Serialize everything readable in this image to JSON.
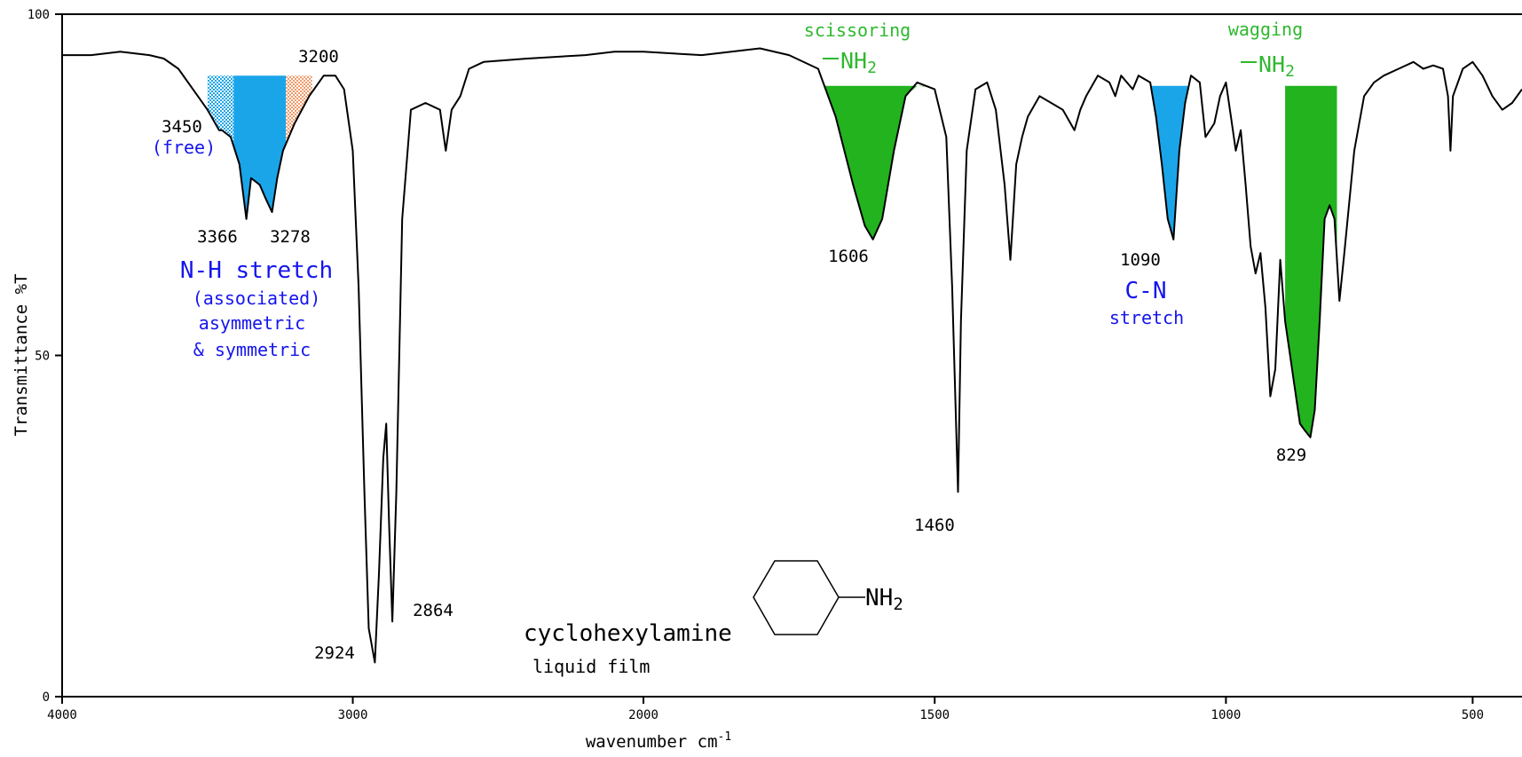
{
  "chart_data": {
    "type": "line",
    "title": "",
    "xlabel": "wavenumber cm",
    "xlabel_exp": "-1",
    "ylabel": "Transmittance %T",
    "xlim": [
      4000,
      400
    ],
    "ylim": [
      0,
      100
    ],
    "x_axis_breakpoints": [
      [
        4000,
        0
      ],
      [
        2000,
        0.3982
      ],
      [
        1000,
        0.7972
      ],
      [
        400,
        1.0
      ]
    ],
    "x_ticks": [
      {
        "value": 4000,
        "label": "4000"
      },
      {
        "value": 3000,
        "label": "3000"
      },
      {
        "value": 2000,
        "label": "2000"
      },
      {
        "value": 1500,
        "label": "1500"
      },
      {
        "value": 1000,
        "label": "1000"
      },
      {
        "value": 500,
        "label": "500"
      }
    ],
    "y_ticks": [
      {
        "value": 0,
        "label": "0"
      },
      {
        "value": 50,
        "label": "50"
      },
      {
        "value": 100,
        "label": "100"
      }
    ],
    "series": [
      {
        "values": [
          [
            4000,
            94
          ],
          [
            3950,
            94
          ],
          [
            3900,
            94
          ],
          [
            3800,
            94.5
          ],
          [
            3700,
            94
          ],
          [
            3650,
            93.5
          ],
          [
            3600,
            92
          ],
          [
            3550,
            89
          ],
          [
            3500,
            86
          ],
          [
            3460,
            83
          ],
          [
            3450,
            83
          ],
          [
            3420,
            82
          ],
          [
            3390,
            78
          ],
          [
            3366,
            70
          ],
          [
            3350,
            76
          ],
          [
            3320,
            75
          ],
          [
            3300,
            73
          ],
          [
            3278,
            71
          ],
          [
            3260,
            76
          ],
          [
            3240,
            80
          ],
          [
            3200,
            84
          ],
          [
            3150,
            88
          ],
          [
            3100,
            91
          ],
          [
            3060,
            91
          ],
          [
            3030,
            89
          ],
          [
            3000,
            80
          ],
          [
            2980,
            60
          ],
          [
            2960,
            30
          ],
          [
            2945,
            10
          ],
          [
            2924,
            5
          ],
          [
            2910,
            18
          ],
          [
            2895,
            35
          ],
          [
            2885,
            40
          ],
          [
            2875,
            25
          ],
          [
            2864,
            11
          ],
          [
            2850,
            30
          ],
          [
            2830,
            70
          ],
          [
            2800,
            86
          ],
          [
            2750,
            87
          ],
          [
            2700,
            86
          ],
          [
            2680,
            80
          ],
          [
            2660,
            86
          ],
          [
            2630,
            88
          ],
          [
            2600,
            92
          ],
          [
            2550,
            93
          ],
          [
            2400,
            93.5
          ],
          [
            2200,
            94
          ],
          [
            2100,
            94.5
          ],
          [
            2000,
            94.5
          ],
          [
            1900,
            94
          ],
          [
            1800,
            95
          ],
          [
            1750,
            94
          ],
          [
            1700,
            92
          ],
          [
            1670,
            85
          ],
          [
            1640,
            75
          ],
          [
            1620,
            69
          ],
          [
            1606,
            67
          ],
          [
            1590,
            70
          ],
          [
            1570,
            80
          ],
          [
            1550,
            88
          ],
          [
            1530,
            90
          ],
          [
            1500,
            89
          ],
          [
            1480,
            82
          ],
          [
            1470,
            60
          ],
          [
            1460,
            30
          ],
          [
            1455,
            55
          ],
          [
            1445,
            80
          ],
          [
            1430,
            89
          ],
          [
            1410,
            90
          ],
          [
            1395,
            86
          ],
          [
            1380,
            75
          ],
          [
            1370,
            64
          ],
          [
            1360,
            78
          ],
          [
            1350,
            82
          ],
          [
            1340,
            85
          ],
          [
            1320,
            88
          ],
          [
            1300,
            87
          ],
          [
            1280,
            86
          ],
          [
            1260,
            83
          ],
          [
            1250,
            86
          ],
          [
            1240,
            88
          ],
          [
            1220,
            91
          ],
          [
            1200,
            90
          ],
          [
            1190,
            88
          ],
          [
            1180,
            91
          ],
          [
            1160,
            89
          ],
          [
            1150,
            91
          ],
          [
            1130,
            90
          ],
          [
            1120,
            85
          ],
          [
            1110,
            78
          ],
          [
            1100,
            70
          ],
          [
            1090,
            67
          ],
          [
            1080,
            80
          ],
          [
            1070,
            87
          ],
          [
            1060,
            91
          ],
          [
            1045,
            90
          ],
          [
            1035,
            82
          ],
          [
            1020,
            84
          ],
          [
            1010,
            88
          ],
          [
            1000,
            90
          ],
          [
            990,
            85
          ],
          [
            980,
            80
          ],
          [
            970,
            83
          ],
          [
            960,
            75
          ],
          [
            950,
            66
          ],
          [
            940,
            62
          ],
          [
            930,
            65
          ],
          [
            920,
            57
          ],
          [
            910,
            44
          ],
          [
            900,
            48
          ],
          [
            890,
            64
          ],
          [
            880,
            55
          ],
          [
            870,
            50
          ],
          [
            860,
            45
          ],
          [
            850,
            40
          ],
          [
            840,
            39
          ],
          [
            829,
            38
          ],
          [
            820,
            42
          ],
          [
            810,
            55
          ],
          [
            800,
            70
          ],
          [
            790,
            72
          ],
          [
            780,
            70
          ],
          [
            770,
            58
          ],
          [
            760,
            65
          ],
          [
            740,
            80
          ],
          [
            720,
            88
          ],
          [
            700,
            90
          ],
          [
            680,
            91
          ],
          [
            650,
            92
          ],
          [
            620,
            93
          ],
          [
            600,
            92
          ],
          [
            580,
            92.5
          ],
          [
            560,
            92
          ],
          [
            550,
            88
          ],
          [
            545,
            80
          ],
          [
            540,
            88
          ],
          [
            520,
            92
          ],
          [
            500,
            93
          ],
          [
            480,
            91
          ],
          [
            460,
            88
          ],
          [
            440,
            86
          ],
          [
            420,
            87
          ],
          [
            400,
            89
          ]
        ]
      }
    ],
    "shaded_regions": [
      {
        "color": "#1ba5e9",
        "pattern": "dots",
        "from": 3500,
        "to": 3410,
        "baseline": 91,
        "label": "3450"
      },
      {
        "color": "#1ba5e9",
        "pattern": "solid",
        "from": 3410,
        "to": 3230,
        "baseline": 91
      },
      {
        "color": "#f19a69",
        "pattern": "dots",
        "from": 3230,
        "to": 3140,
        "baseline": 91,
        "label": "3200"
      },
      {
        "color": "#22b31f",
        "pattern": "solid",
        "from": 1690,
        "to": 1510,
        "baseline": 89.5
      },
      {
        "color": "#1ba5e9",
        "pattern": "solid",
        "from": 1130,
        "to": 1065,
        "baseline": 89.5
      },
      {
        "color": "#22b31f",
        "pattern": "solid",
        "from": 880,
        "to": 775,
        "baseline": 89.5
      }
    ],
    "annotations": [
      {
        "text": "3450",
        "class": "peak"
      },
      {
        "text": "(free)",
        "class": "blue"
      },
      {
        "text": "3200",
        "class": "peak"
      },
      {
        "text": "3366",
        "class": "peak"
      },
      {
        "text": "3278",
        "class": "peak"
      },
      {
        "text": "N-H stretch",
        "class": "blue-big"
      },
      {
        "text": "(associated)",
        "class": "blue"
      },
      {
        "text": "asymmetric",
        "class": "blue"
      },
      {
        "text": "& symmetric",
        "class": "blue"
      },
      {
        "text": "2924",
        "class": "peak"
      },
      {
        "text": "2864",
        "class": "peak"
      },
      {
        "text": "scissoring",
        "class": "green"
      },
      {
        "text": "1606",
        "class": "peak"
      },
      {
        "text": "1460",
        "class": "peak"
      },
      {
        "text": "1090",
        "class": "peak"
      },
      {
        "text": "C-N",
        "class": "blue-big"
      },
      {
        "text": "stretch",
        "class": "blue"
      },
      {
        "text": "wagging",
        "class": "green"
      },
      {
        "text": "829",
        "class": "peak"
      }
    ],
    "nh2_labels": [
      "NH",
      "2"
    ],
    "compound": {
      "name": "cyclohexylamine",
      "state": "liquid film",
      "substituent": "NH",
      "substituent_sub": "2"
    }
  }
}
